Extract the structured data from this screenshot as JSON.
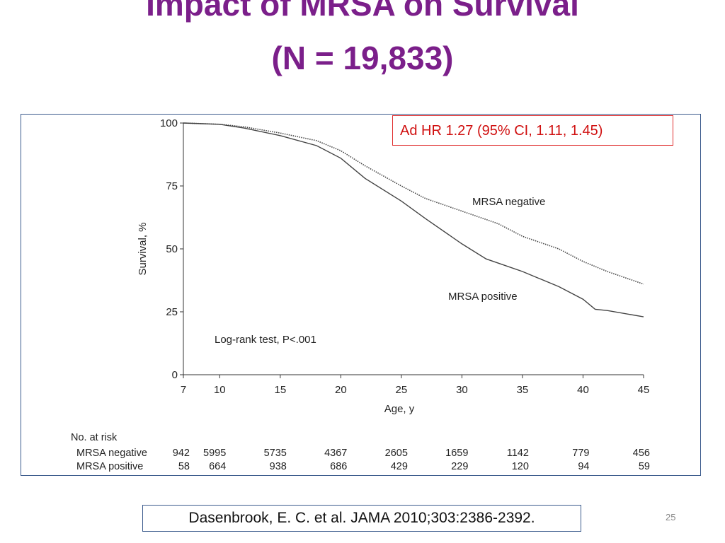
{
  "slide": {
    "title_line1": "Impact of MRSA on Survival",
    "title_line2": "(N = 19,833)",
    "annotation": "Ad HR 1.27 (95% CI, 1.11, 1.45)",
    "citation": "Dasenbrook, E. C. et al. JAMA 2010;303:2386-2392.",
    "slide_number": "25"
  },
  "chart_data": {
    "type": "line",
    "title": "",
    "xlabel": "Age, y",
    "ylabel": "Survival, %",
    "xlim": [
      7,
      45
    ],
    "ylim": [
      0,
      100
    ],
    "x_ticks": [
      7,
      10,
      15,
      20,
      25,
      30,
      35,
      40,
      45
    ],
    "y_ticks": [
      0,
      25,
      50,
      75,
      100
    ],
    "grid": false,
    "annotations": [
      "Log-rank test, P<.001"
    ],
    "series": [
      {
        "name": "MRSA negative",
        "color": "#444444",
        "style": "dotted",
        "x": [
          7,
          10,
          12,
          15,
          18,
          20,
          22,
          25,
          27,
          30,
          33,
          35,
          38,
          40,
          42,
          45
        ],
        "y": [
          100,
          99.5,
          98.5,
          96,
          93,
          89,
          83,
          75,
          70,
          65,
          60,
          55,
          50,
          45,
          41,
          36
        ]
      },
      {
        "name": "MRSA positive",
        "color": "#444444",
        "style": "solid",
        "x": [
          7,
          10,
          12,
          15,
          18,
          20,
          22,
          25,
          27,
          30,
          32,
          35,
          38,
          40,
          41,
          42,
          45
        ],
        "y": [
          100,
          99.5,
          98,
          95,
          91,
          86,
          78,
          69,
          62,
          52,
          46,
          41,
          35,
          30,
          26,
          25.5,
          23
        ]
      }
    ],
    "risk_table": {
      "title": "No. at risk",
      "rows": [
        {
          "label": "MRSA negative",
          "values": [
            "942",
            "5995",
            "5735",
            "4367",
            "2605",
            "1659",
            "1142",
            "779",
            "456"
          ]
        },
        {
          "label": "MRSA positive",
          "values": [
            "58",
            "664",
            "938",
            "686",
            "429",
            "229",
            "120",
            "94",
            "59"
          ]
        }
      ]
    }
  }
}
